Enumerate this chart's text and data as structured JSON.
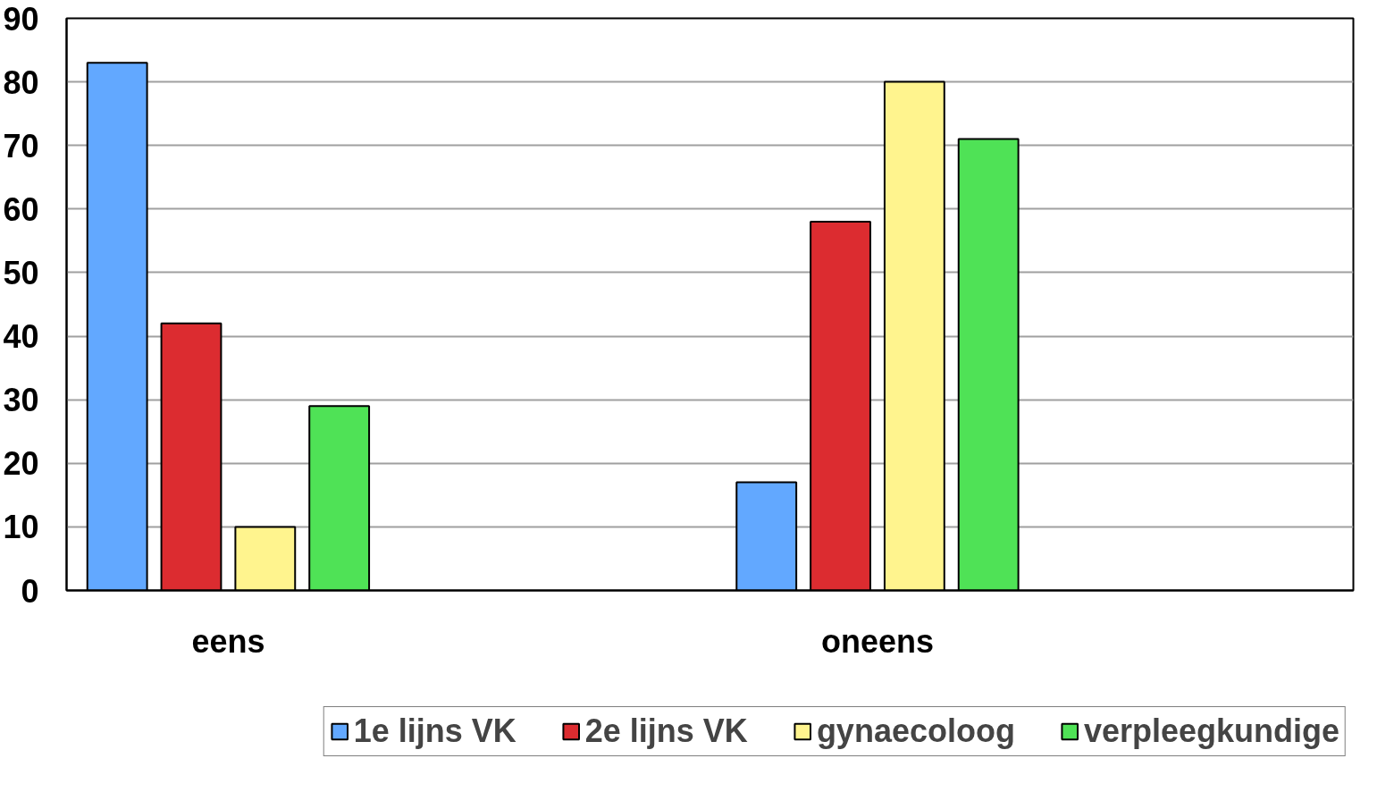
{
  "chart_data": {
    "type": "bar",
    "categories": [
      "eens",
      "oneens"
    ],
    "series": [
      {
        "name": "1e lijns VK",
        "color": "#62a8ff",
        "values": [
          83,
          17
        ]
      },
      {
        "name": "2e lijns VK",
        "color": "#dc2c30",
        "values": [
          42,
          58
        ]
      },
      {
        "name": "gynaecoloog",
        "color": "#fff48e",
        "values": [
          10,
          80
        ]
      },
      {
        "name": "verpleegkundige",
        "color": "#4fe256",
        "values": [
          29,
          71
        ]
      }
    ],
    "ylim": [
      0,
      90
    ],
    "yticks": [
      0,
      10,
      20,
      30,
      40,
      50,
      60,
      70,
      80,
      90
    ],
    "grid": "y",
    "legend": "bottom"
  }
}
